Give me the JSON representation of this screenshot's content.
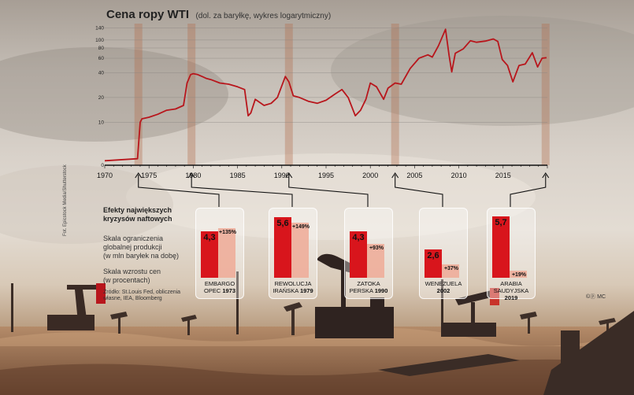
{
  "chart_data": {
    "type": "line",
    "title": "Cena ropy WTI",
    "subtitle": "(dol. za baryłkę, wykres logarytmiczny)",
    "y_scale": "log",
    "y_ticks": [
      0,
      10,
      20,
      40,
      60,
      80,
      100,
      140
    ],
    "x_ticks": [
      "1970",
      "1975",
      "1980",
      "1985",
      "1990",
      "1995",
      "2000",
      "2005",
      "2010",
      "2015"
    ],
    "xlim": [
      1970,
      2020
    ],
    "series": [
      {
        "color": "#b8161c",
        "x": [
          1970,
          1973.7,
          1974.0,
          1974.2,
          1975,
          1976,
          1977,
          1978,
          1978.9,
          1979.3,
          1979.7,
          1980.0,
          1980.5,
          1981.0,
          1981.5,
          1982,
          1983,
          1984,
          1985,
          1985.8,
          1986.2,
          1986.5,
          1987,
          1988,
          1988.8,
          1989.5,
          1990.4,
          1990.8,
          1991.3,
          1992,
          1993,
          1994,
          1995,
          1996,
          1996.8,
          1997.5,
          1998.3,
          1998.9,
          1999.5,
          2000,
          2000.7,
          2001.5,
          2002.0,
          2002.8,
          2003.5,
          2004.5,
          2005.5,
          2006.5,
          2007.0,
          2007.7,
          2008.5,
          2008.9,
          2009.2,
          2009.6,
          2010.5,
          2011.3,
          2012,
          2013,
          2013.9,
          2014.4,
          2014.9,
          2015.5,
          2016.1,
          2016.8,
          2017.5,
          2018.3,
          2018.9,
          2019.4,
          2019.9
        ],
        "y": [
          3.4,
          3.6,
          10,
          11,
          11.5,
          12.5,
          14,
          14.5,
          16,
          30,
          38,
          39,
          38,
          36,
          34,
          33,
          30,
          29,
          27,
          25,
          12,
          13,
          19,
          16,
          17,
          20,
          36,
          31,
          21,
          20,
          18,
          17,
          18.5,
          22,
          25,
          20,
          12,
          14,
          19,
          30,
          27,
          19,
          26,
          30,
          29,
          45,
          60,
          66,
          62,
          85,
          135,
          65,
          41,
          69,
          78,
          98,
          94,
          97,
          103,
          96,
          58,
          49,
          31,
          49,
          51,
          70,
          47,
          60,
          61
        ]
      }
    ],
    "events": [
      {
        "name": "EMBARGO OPEC 1973",
        "year": 1973,
        "supply": 4.3,
        "price_change": 135,
        "label_supply": "4,3",
        "label_change": "+135%"
      },
      {
        "name": "REWOLUCJA IRAŃSKA 1979",
        "year": 1979,
        "supply": 5.6,
        "price_change": 149,
        "label_supply": "5,6",
        "label_change": "+149%"
      },
      {
        "name": "ZATOKA PERSKA 1990",
        "year": 1990,
        "supply": 4.3,
        "price_change": 93,
        "label_supply": "4,3",
        "label_change": "+93%"
      },
      {
        "name": "WENEZUELA 2002",
        "year": 2002,
        "supply": 2.6,
        "price_change": 37,
        "label_supply": "2,6",
        "label_change": "+37%"
      },
      {
        "name": "ARABIA SAUDYJSKA 2019",
        "year": 2019,
        "supply": 5.7,
        "price_change": 19,
        "label_supply": "5,7",
        "label_change": "+19%"
      }
    ]
  },
  "labels": {
    "title": "Cena ropy WTI",
    "subtitle": "(dol. za baryłkę, wykres logarytmiczny)",
    "legend_head_1": "Efekty największych",
    "legend_head_2": "kryzysów naftowych",
    "legend_a_1": "Skala ograniczenia",
    "legend_a_2": "globalnej produkcji",
    "legend_a_3": "(w mln baryłek na dobę)",
    "legend_b_1": "Skala wzrostu cen",
    "legend_b_2": "(w procentach)",
    "source_1": "Źródło: St.Louis Fed, obliczenia",
    "source_2": "własne, IEA, Bloomberg",
    "credit": "Fot. Epicstock Media/Shutterstock",
    "badge": "MC",
    "cards": [
      {
        "l1": "EMBARGO",
        "l2": "OPEC",
        "l2b": "1973"
      },
      {
        "l1": "REWOLUCJA",
        "l2": "IRAŃSKA",
        "l2b": "1979"
      },
      {
        "l1": "ZATOKA",
        "l2": "PERSKA",
        "l2b": "1990"
      },
      {
        "l1": "WENEZUELA",
        "l2": "",
        "l2b": "2002"
      },
      {
        "l1": "ARABIA SAUDYJSKA",
        "l2": "",
        "l2b": "2019"
      }
    ]
  },
  "colors": {
    "line": "#b8161c",
    "bar_supply": "#d8151c",
    "bar_price": "#eeaa96",
    "grid": "#8a8580"
  }
}
